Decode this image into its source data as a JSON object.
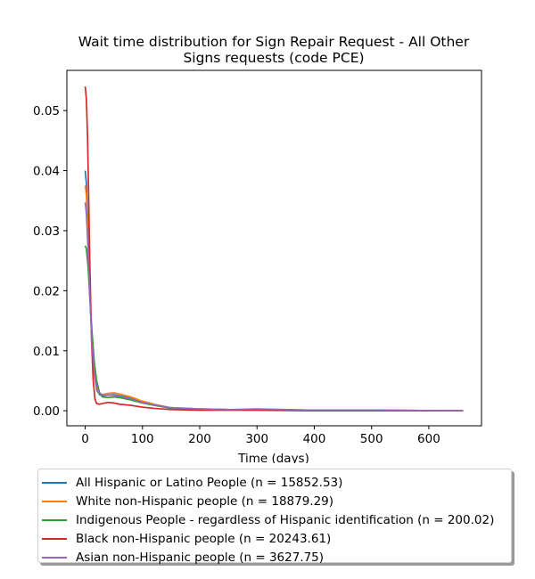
{
  "chart_data": {
    "type": "line",
    "title_lines": [
      "Wait time distribution  for Sign Repair Request - All Other",
      "Signs  requests (code PCE)"
    ],
    "xlabel": "Time (days)",
    "ylabel": "",
    "xlim": [
      -32,
      692
    ],
    "ylim": [
      -0.0025,
      0.0567
    ],
    "xticks": [
      0,
      100,
      200,
      300,
      400,
      500,
      600
    ],
    "yticks": [
      0.0,
      0.01,
      0.02,
      0.03,
      0.04,
      0.05
    ],
    "ytick_labels": [
      "0.00",
      "0.01",
      "0.02",
      "0.03",
      "0.04",
      "0.05"
    ],
    "grid": false,
    "legend_position": "below",
    "series": [
      {
        "name": "All Hispanic or Latino People (n = 15852.53)",
        "color": "#1f77b4",
        "x": [
          0,
          2,
          5,
          8,
          12,
          16,
          20,
          25,
          30,
          40,
          50,
          60,
          80,
          100,
          120,
          150,
          200,
          250,
          300,
          400,
          500,
          660
        ],
        "y": [
          0.04,
          0.038,
          0.03,
          0.02,
          0.011,
          0.006,
          0.0035,
          0.0027,
          0.0025,
          0.0026,
          0.0027,
          0.0025,
          0.0021,
          0.0015,
          0.001,
          0.0005,
          0.0003,
          0.0002,
          0.0002,
          0.0001,
          0.0001,
          0.0
        ]
      },
      {
        "name": "White non-Hispanic people (n = 18879.29)",
        "color": "#ff7f0e",
        "x": [
          0,
          2,
          5,
          8,
          12,
          16,
          20,
          25,
          30,
          40,
          50,
          60,
          80,
          100,
          120,
          150,
          200,
          250,
          300,
          400,
          500,
          660
        ],
        "y": [
          0.0375,
          0.036,
          0.029,
          0.02,
          0.011,
          0.006,
          0.0038,
          0.0029,
          0.0027,
          0.0029,
          0.003,
          0.0028,
          0.0023,
          0.0016,
          0.0011,
          0.0005,
          0.0003,
          0.0002,
          0.0002,
          0.0001,
          0.0001,
          0.0
        ]
      },
      {
        "name": "Indigenous People - regardless of Hispanic identification (n = 200.02)",
        "color": "#2ca02c",
        "x": [
          0,
          2,
          5,
          8,
          12,
          16,
          20,
          25,
          30,
          40,
          50,
          60,
          80,
          100,
          120,
          150,
          200,
          250,
          300,
          400,
          500,
          660
        ],
        "y": [
          0.0275,
          0.027,
          0.024,
          0.019,
          0.013,
          0.008,
          0.005,
          0.003,
          0.0023,
          0.0022,
          0.0023,
          0.0022,
          0.0018,
          0.0013,
          0.0009,
          0.0004,
          0.0002,
          0.0002,
          0.0002,
          0.0001,
          0.0001,
          0.0
        ]
      },
      {
        "name": "Black non-Hispanic people (n = 20243.61)",
        "color": "#d62728",
        "x": [
          0,
          2,
          4,
          6,
          8,
          11,
          14,
          17,
          20,
          25,
          30,
          40,
          50,
          60,
          80,
          100,
          120,
          150,
          200,
          250,
          300,
          400,
          500,
          660
        ],
        "y": [
          0.054,
          0.052,
          0.046,
          0.036,
          0.025,
          0.012,
          0.005,
          0.002,
          0.0012,
          0.0011,
          0.0012,
          0.0014,
          0.0013,
          0.0011,
          0.0009,
          0.0006,
          0.0004,
          0.0002,
          0.0001,
          0.0001,
          0.0001,
          0.0,
          0.0,
          0.0
        ]
      },
      {
        "name": "Asian non-Hispanic people (n = 3627.75)",
        "color": "#9467bd",
        "x": [
          0,
          2,
          5,
          8,
          12,
          16,
          20,
          25,
          30,
          40,
          50,
          60,
          80,
          100,
          120,
          150,
          200,
          250,
          300,
          400,
          500,
          660
        ],
        "y": [
          0.0347,
          0.033,
          0.027,
          0.019,
          0.011,
          0.0065,
          0.004,
          0.003,
          0.0026,
          0.0026,
          0.0026,
          0.0024,
          0.002,
          0.0014,
          0.001,
          0.0005,
          0.0003,
          0.0002,
          0.0003,
          0.0001,
          0.0001,
          0.0
        ]
      }
    ]
  }
}
